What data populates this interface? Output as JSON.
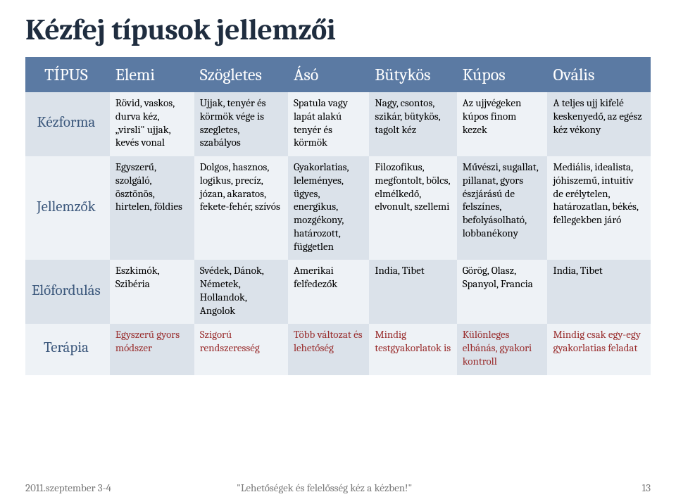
{
  "title": "Kézfej típusok jellemzői",
  "colors": {
    "header_bg": "#5b7aa3",
    "header_text": "#ffffff",
    "rowhead_text": "#3c587c",
    "band_even": "#dbe2ea",
    "band_odd": "#eef2f6",
    "therapy_text": "#9a2f2f",
    "footer_text": "#7a7a7a",
    "title_text": "#1f2d3f"
  },
  "table": {
    "columns": [
      "TÍPUS",
      "Elemi",
      "Szögletes",
      "Ásó",
      "Bütykös",
      "Kúpos",
      "Ovális"
    ],
    "rows": [
      {
        "head": "Kézforma",
        "cells": [
          "Rövid, vaskos, durva kéz, „virsli\" ujjak, kevés vonal",
          "Ujjak, tenyér és körmök vége is szegletes, szabályos",
          "Spatula vagy lapát alakú tenyér és körmök",
          "Nagy, csontos, szikár, bütykös, tagolt kéz",
          "Az ujjvégeken kúpos finom kezek",
          "A teljes ujj kifelé keskenyedő, az egész kéz vékony"
        ]
      },
      {
        "head": "Jellemzők",
        "cells": [
          "Egyszerű, szolgáló, ösztönös, hirtelen, földies",
          "Dolgos, hasznos, logikus, precíz, józan, akaratos, fekete-fehér, szívós",
          "Gyakorlatias, leleményes, ügyes, energikus, mozgékony, határozott, független",
          "Filozofikus, megfontolt, bölcs, elmélkedő, elvonult, szellemi",
          "Művészi, sugallat, pillanat, gyors észjárású de felszínes, befolyásolható, lobbanékony",
          "Mediális, idealista, jóhiszemű, intuitív  de erélytelen, határozatlan, békés, fellegekben járó"
        ]
      },
      {
        "head": "Előfordulás",
        "cells": [
          "Eszkimók, Szibéria",
          "Svédek, Dánok, Németek, Hollandok, Angolok",
          "Amerikai felfedezők",
          "India, Tibet",
          "Görög, Olasz, Spanyol, Francia",
          "India, Tibet"
        ]
      },
      {
        "head": "Terápia",
        "cells": [
          "Egyszerű gyors módszer",
          "Szigorú rendszeresség",
          "Több változat és lehetőség",
          "Mindig testgyakorlatok is",
          "Különleges elbánás, gyakori kontroll",
          "Mindig csak egy-egy gyakorlatias feladat"
        ]
      }
    ]
  },
  "footer": {
    "date": "2011.szeptember 3-4",
    "center": "\"Lehetőségek és felelősség kéz a kézben!\"",
    "pageno": "13"
  }
}
